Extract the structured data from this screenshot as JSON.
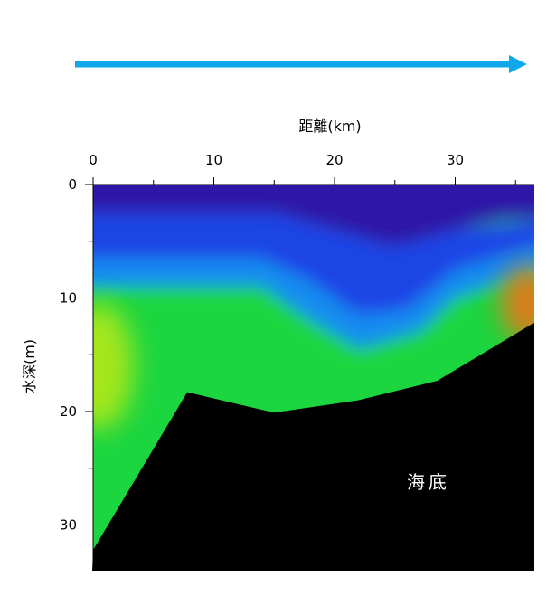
{
  "chart_data": {
    "type": "heatmap",
    "title": "",
    "xlabel": "距離(km)",
    "ylabel": "水深(m)",
    "xlim": [
      0,
      36.5
    ],
    "ylim": [
      0,
      34
    ],
    "x_ticks": [
      0,
      10,
      20,
      30
    ],
    "y_ticks": [
      0,
      10,
      20,
      30
    ],
    "y_inverted": true,
    "x_axis_position": "top",
    "direction_arrow": {
      "from_km": -1.5,
      "to_km": 35.5,
      "color": "#10a8e8"
    },
    "seabed": {
      "label": "海底",
      "color": "#000000",
      "profile": [
        {
          "x": 0,
          "y": 32.2
        },
        {
          "x": 7.8,
          "y": 18.3
        },
        {
          "x": 15,
          "y": 20.1
        },
        {
          "x": 22,
          "y": 19.0
        },
        {
          "x": 28.5,
          "y": 17.3
        },
        {
          "x": 36.5,
          "y": 12.2
        }
      ]
    },
    "field": {
      "layers": [
        {
          "name": "surface",
          "color": "#2e14a8",
          "top": [
            [
              0,
              0
            ],
            [
              36.5,
              0
            ]
          ],
          "bottom": [
            [
              0,
              2.5
            ],
            [
              15,
              2.5
            ],
            [
              20,
              4
            ],
            [
              25,
              5.5
            ],
            [
              30,
              4
            ],
            [
              34,
              3.2
            ],
            [
              36.5,
              3
            ]
          ]
        },
        {
          "name": "upper",
          "color": "#1f44e6",
          "top": [
            [
              0,
              2.5
            ],
            [
              15,
              2.5
            ],
            [
              20,
              4
            ],
            [
              25,
              5.5
            ],
            [
              30,
              4
            ],
            [
              36.5,
              3
            ]
          ],
          "bottom": [
            [
              0,
              6.5
            ],
            [
              14,
              6.5
            ],
            [
              18,
              8.5
            ],
            [
              22,
              11.5
            ],
            [
              26,
              11
            ],
            [
              30,
              7.5
            ],
            [
              36.5,
              5
            ]
          ]
        },
        {
          "name": "thermocline",
          "color": "#178cf0",
          "top": [
            [
              0,
              6.5
            ],
            [
              14,
              6.5
            ],
            [
              18,
              8.5
            ],
            [
              22,
              11.5
            ],
            [
              26,
              11
            ],
            [
              30,
              7.5
            ],
            [
              36.5,
              5
            ]
          ],
          "bottom": [
            [
              0,
              9
            ],
            [
              14,
              9
            ],
            [
              18,
              12
            ],
            [
              22,
              14.5
            ],
            [
              27,
              13
            ],
            [
              30,
              10
            ],
            [
              36.5,
              7
            ]
          ]
        },
        {
          "name": "lower",
          "color": "#1fd640",
          "top": [
            [
              0,
              9
            ],
            [
              14,
              9
            ],
            [
              18,
              12
            ],
            [
              22,
              14.5
            ],
            [
              27,
              13
            ],
            [
              30,
              10
            ],
            [
              36.5,
              7
            ]
          ],
          "bottom": [
            [
              0,
              34
            ],
            [
              36.5,
              34
            ]
          ]
        }
      ],
      "hotspots": [
        {
          "x": 0.5,
          "y": 16,
          "value": "high",
          "color": "#b4e81a"
        },
        {
          "x": 36,
          "y": 10.5,
          "value": "max",
          "color": "#f07418"
        }
      ]
    }
  }
}
